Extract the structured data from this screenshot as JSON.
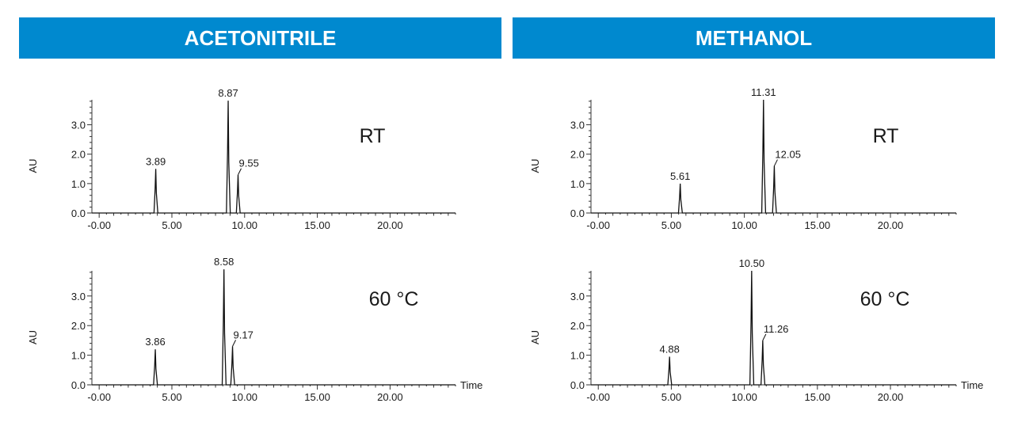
{
  "header_color": "#0089cf",
  "headers": {
    "left": "ACETONITRILE",
    "right": "METHANOL"
  },
  "chart_data": [
    {
      "type": "line",
      "panel": "ACETONITRILE",
      "condition": "RT",
      "xlabel": "",
      "ylabel": "AU",
      "xlim": [
        -0.5,
        24.5
      ],
      "ylim": [
        0,
        3.85
      ],
      "x_ticks": [
        "-0.00",
        "5.00",
        "10.00",
        "15.00",
        "20.00"
      ],
      "y_ticks": [
        "0.0",
        "1.0",
        "2.0",
        "3.0"
      ],
      "peaks": [
        {
          "rt": 3.89,
          "label": "3.89",
          "height": 1.5
        },
        {
          "rt": 8.87,
          "label": "8.87",
          "height": 3.82
        },
        {
          "rt": 9.55,
          "label": "9.55",
          "height": 1.3
        }
      ]
    },
    {
      "type": "line",
      "panel": "ACETONITRILE",
      "condition": "60 °C",
      "xlabel": "Time",
      "ylabel": "AU",
      "xlim": [
        -0.5,
        24.5
      ],
      "ylim": [
        0,
        3.85
      ],
      "x_ticks": [
        "-0.00",
        "5.00",
        "10.00",
        "15.00",
        "20.00"
      ],
      "y_ticks": [
        "0.0",
        "1.0",
        "2.0",
        "3.0"
      ],
      "peaks": [
        {
          "rt": 3.86,
          "label": "3.86",
          "height": 1.2
        },
        {
          "rt": 8.58,
          "label": "8.58",
          "height": 3.9
        },
        {
          "rt": 9.17,
          "label": "9.17",
          "height": 1.3
        }
      ]
    },
    {
      "type": "line",
      "panel": "METHANOL",
      "condition": "RT",
      "xlabel": "",
      "ylabel": "AU",
      "xlim": [
        -0.5,
        24.5
      ],
      "ylim": [
        0,
        3.85
      ],
      "x_ticks": [
        "-0.00",
        "5.00",
        "10.00",
        "15.00",
        "20.00"
      ],
      "y_ticks": [
        "0.0",
        "1.0",
        "2.0",
        "3.0"
      ],
      "peaks": [
        {
          "rt": 5.61,
          "label": "5.61",
          "height": 1.0
        },
        {
          "rt": 11.31,
          "label": "11.31",
          "height": 3.85
        },
        {
          "rt": 12.05,
          "label": "12.05",
          "height": 1.6
        }
      ]
    },
    {
      "type": "line",
      "panel": "METHANOL",
      "condition": "60 °C",
      "xlabel": "Time",
      "ylabel": "AU",
      "xlim": [
        -0.5,
        24.5
      ],
      "ylim": [
        0,
        3.85
      ],
      "x_ticks": [
        "-0.00",
        "5.00",
        "10.00",
        "15.00",
        "20.00"
      ],
      "y_ticks": [
        "0.0",
        "1.0",
        "2.0",
        "3.0"
      ],
      "peaks": [
        {
          "rt": 4.88,
          "label": "4.88",
          "height": 0.95
        },
        {
          "rt": 10.5,
          "label": "10.50",
          "height": 3.85
        },
        {
          "rt": 11.26,
          "label": "11.26",
          "height": 1.5
        }
      ]
    }
  ]
}
